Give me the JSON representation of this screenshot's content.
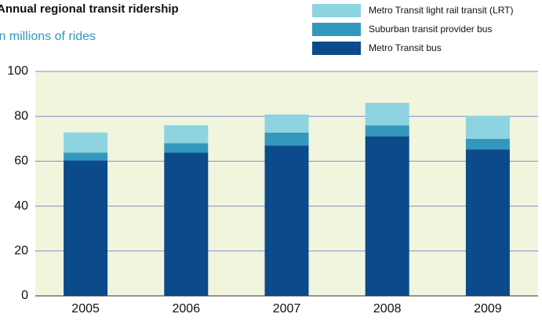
{
  "chart_data": {
    "type": "stacked-bar",
    "title": "Annual regional transit ridership",
    "subtitle": "In millions of rides",
    "categories": [
      "2005",
      "2006",
      "2007",
      "2008",
      "2009"
    ],
    "series": [
      {
        "name": "Metro Transit bus",
        "color": "#0b4a8b",
        "values": [
          60.3,
          63.8,
          67.0,
          71.1,
          65.2
        ]
      },
      {
        "name": "Suburban transit provider bus",
        "color": "#3398bd",
        "values": [
          3.5,
          4.2,
          5.8,
          4.9,
          4.8
        ]
      },
      {
        "name": "Metro Transit light rail transit (LRT)",
        "color": "#8dd4e0",
        "values": [
          9.0,
          8.0,
          8.0,
          10.0,
          10.1
        ]
      }
    ],
    "ylim": [
      0,
      100
    ],
    "yticks": [
      0,
      20,
      40,
      60,
      80,
      100
    ],
    "grid": true,
    "legend": "top-right"
  }
}
